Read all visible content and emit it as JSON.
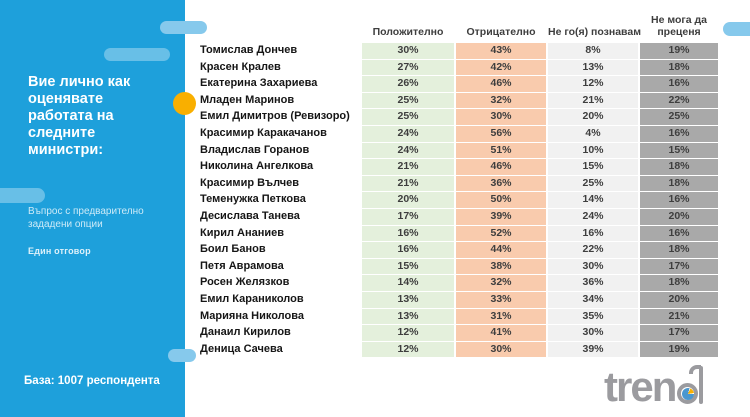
{
  "theme": {
    "sidebar_bg": "#1EA0DB",
    "accent_dot": "#F9AF00",
    "positive_bg": "#E4F0DC",
    "negative_bg": "#F9CBAD",
    "unknown_bg": "#F1F1F1",
    "cantjudge_bg": "#A9A9A9",
    "logo_blue": "#4A97CF",
    "logo_orange": "#F9B000"
  },
  "sidebar": {
    "title": "Вие лично как оценявате работата на следните министри:",
    "note": "Въпрос с предварително зададени опции",
    "answer_type": "Един отговор",
    "base": "База: 1007 респондента"
  },
  "table": {
    "columns": [
      "Положително",
      "Отрицателно",
      "Не го(я) познавам",
      "Не мога да преценя"
    ],
    "rows": [
      {
        "name": "Томислав Дончев",
        "values": [
          "30%",
          "43%",
          "8%",
          "19%"
        ]
      },
      {
        "name": "Красен Кралев",
        "values": [
          "27%",
          "42%",
          "13%",
          "18%"
        ]
      },
      {
        "name": "Екатерина Захариева",
        "values": [
          "26%",
          "46%",
          "12%",
          "16%"
        ]
      },
      {
        "name": "Младен Маринов",
        "values": [
          "25%",
          "32%",
          "21%",
          "22%"
        ]
      },
      {
        "name": "Емил Димитров (Ревизоро)",
        "values": [
          "25%",
          "30%",
          "20%",
          "25%"
        ]
      },
      {
        "name": "Красимир Каракачанов",
        "values": [
          "24%",
          "56%",
          "4%",
          "16%"
        ]
      },
      {
        "name": "Владислав Горанов",
        "values": [
          "24%",
          "51%",
          "10%",
          "15%"
        ]
      },
      {
        "name": "Николина Ангелкова",
        "values": [
          "21%",
          "46%",
          "15%",
          "18%"
        ]
      },
      {
        "name": "Красимир Вълчев",
        "values": [
          "21%",
          "36%",
          "25%",
          "18%"
        ]
      },
      {
        "name": "Теменужка Петкова",
        "values": [
          "20%",
          "50%",
          "14%",
          "16%"
        ]
      },
      {
        "name": "Десислава Танева",
        "values": [
          "17%",
          "39%",
          "24%",
          "20%"
        ]
      },
      {
        "name": "Кирил Ананиев",
        "values": [
          "16%",
          "52%",
          "16%",
          "16%"
        ]
      },
      {
        "name": "Боил Банов",
        "values": [
          "16%",
          "44%",
          "22%",
          "18%"
        ]
      },
      {
        "name": "Петя Аврамова",
        "values": [
          "15%",
          "38%",
          "30%",
          "17%"
        ]
      },
      {
        "name": "Росен Желязков",
        "values": [
          "14%",
          "32%",
          "36%",
          "18%"
        ]
      },
      {
        "name": "Емил Караниколов",
        "values": [
          "13%",
          "33%",
          "34%",
          "20%"
        ]
      },
      {
        "name": "Марияна Николова",
        "values": [
          "13%",
          "31%",
          "35%",
          "21%"
        ]
      },
      {
        "name": "Данаил Кирилов",
        "values": [
          "12%",
          "41%",
          "30%",
          "17%"
        ]
      },
      {
        "name": "Деница Сачева",
        "values": [
          "12%",
          "30%",
          "39%",
          "19%"
        ]
      }
    ]
  },
  "logo": {
    "name": "trend",
    "prefix": "tren"
  },
  "chart_data": {
    "type": "table",
    "title": "Вие лично как оценявате работата на следните министри:",
    "note": "Въпрос с предварително зададени опции",
    "answer_type": "Един отговор",
    "base": "База: 1007 респондента",
    "unit": "%",
    "categories": [
      "Томислав Дончев",
      "Красен Кралев",
      "Екатерина Захариева",
      "Младен Маринов",
      "Емил Димитров (Ревизоро)",
      "Красимир Каракачанов",
      "Владислав Горанов",
      "Николина Ангелкова",
      "Красимир Вълчев",
      "Теменужка Петкова",
      "Десислава Танева",
      "Кирил Ананиев",
      "Боил Банов",
      "Петя Аврамова",
      "Росен Желязков",
      "Емил Караниколов",
      "Марияна Николова",
      "Данаил Кирилов",
      "Деница Сачева"
    ],
    "series": [
      {
        "name": "Положително",
        "values": [
          30,
          27,
          26,
          25,
          25,
          24,
          24,
          21,
          21,
          20,
          17,
          16,
          16,
          15,
          14,
          13,
          13,
          12,
          12
        ]
      },
      {
        "name": "Отрицателно",
        "values": [
          43,
          42,
          46,
          32,
          30,
          56,
          51,
          46,
          36,
          50,
          39,
          52,
          44,
          38,
          32,
          33,
          31,
          41,
          30
        ]
      },
      {
        "name": "Не го(я) познавам",
        "values": [
          8,
          13,
          12,
          21,
          20,
          4,
          10,
          15,
          25,
          14,
          24,
          16,
          22,
          30,
          36,
          34,
          35,
          30,
          39
        ]
      },
      {
        "name": "Не мога да преценя",
        "values": [
          19,
          18,
          16,
          22,
          25,
          16,
          15,
          18,
          18,
          16,
          20,
          16,
          18,
          17,
          18,
          20,
          21,
          17,
          19
        ]
      }
    ]
  }
}
